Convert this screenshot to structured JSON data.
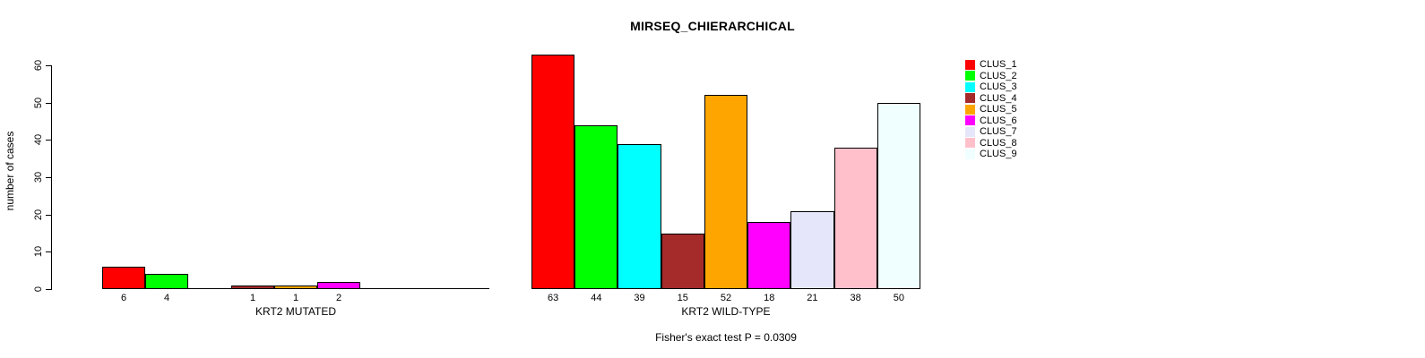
{
  "chart_data": {
    "type": "bar",
    "title": "MIRSEQ_CHIERARCHICAL",
    "ylabel": "number of cases",
    "annotation": "Fisher's exact test P = 0.0309",
    "categories": [
      "CLUS_1",
      "CLUS_2",
      "CLUS_3",
      "CLUS_4",
      "CLUS_5",
      "CLUS_6",
      "CLUS_7",
      "CLUS_8",
      "CLUS_9"
    ],
    "colors": [
      "#FF0000",
      "#00FF00",
      "#00FFFF",
      "#A52A2A",
      "#FFA500",
      "#FF00FF",
      "#E6E6FA",
      "#FFC0CB",
      "#F0FFFF"
    ],
    "groups": [
      {
        "xlabel": "KRT2 MUTATED",
        "values": [
          6,
          4,
          0,
          1,
          1,
          2,
          0,
          0,
          0
        ]
      },
      {
        "xlabel": "KRT2 WILD-TYPE",
        "values": [
          63,
          44,
          39,
          15,
          52,
          18,
          21,
          38,
          50
        ]
      }
    ],
    "yticks": [
      0,
      10,
      20,
      30,
      40,
      50,
      60
    ],
    "ylim": [
      0,
      63
    ],
    "grid": false,
    "legend_position": "right",
    "bar_label_rule": "value shown under bar only when value > 0"
  }
}
